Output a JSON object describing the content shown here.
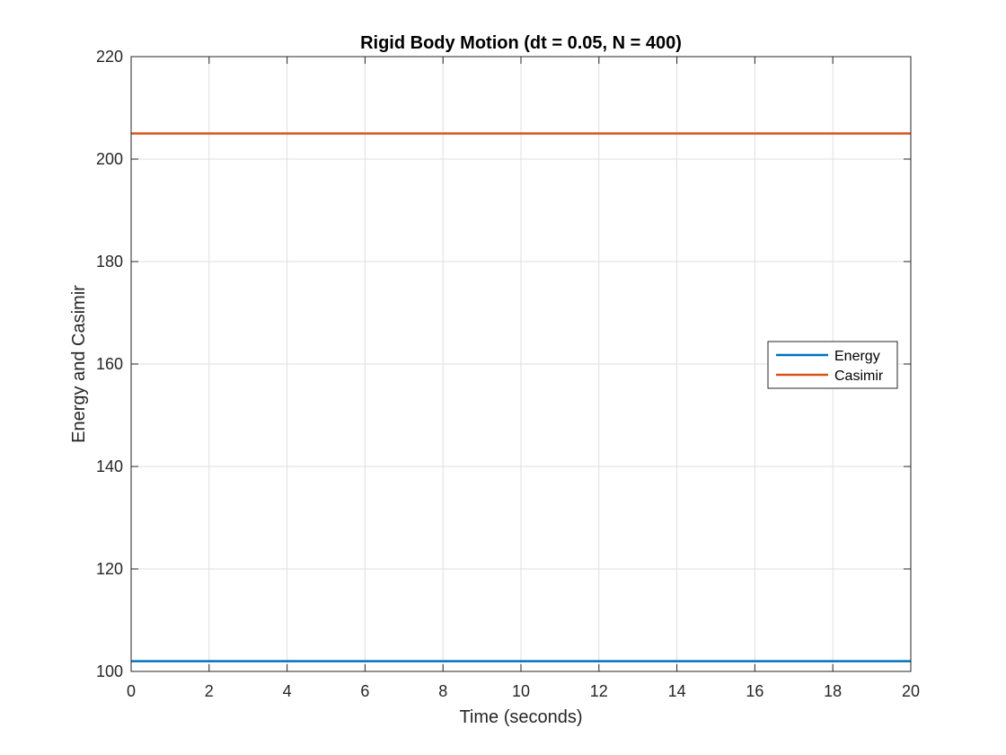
{
  "chart_data": {
    "type": "line",
    "title": "Rigid Body Motion  (dt = 0.05, N = 400)",
    "xlabel": "Time (seconds)",
    "ylabel": "Energy and Casimir",
    "xlim": [
      0,
      20
    ],
    "ylim": [
      100,
      220
    ],
    "xticks": [
      0,
      2,
      4,
      6,
      8,
      10,
      12,
      14,
      16,
      18,
      20
    ],
    "yticks": [
      100,
      120,
      140,
      160,
      180,
      200,
      220
    ],
    "grid": true,
    "legend_position": "east",
    "series": [
      {
        "name": "Energy",
        "color": "#0072BD",
        "x": [
          0,
          20
        ],
        "y": [
          102,
          102
        ]
      },
      {
        "name": "Casimir",
        "color": "#D95319",
        "x": [
          0,
          20
        ],
        "y": [
          205,
          205
        ]
      }
    ]
  }
}
